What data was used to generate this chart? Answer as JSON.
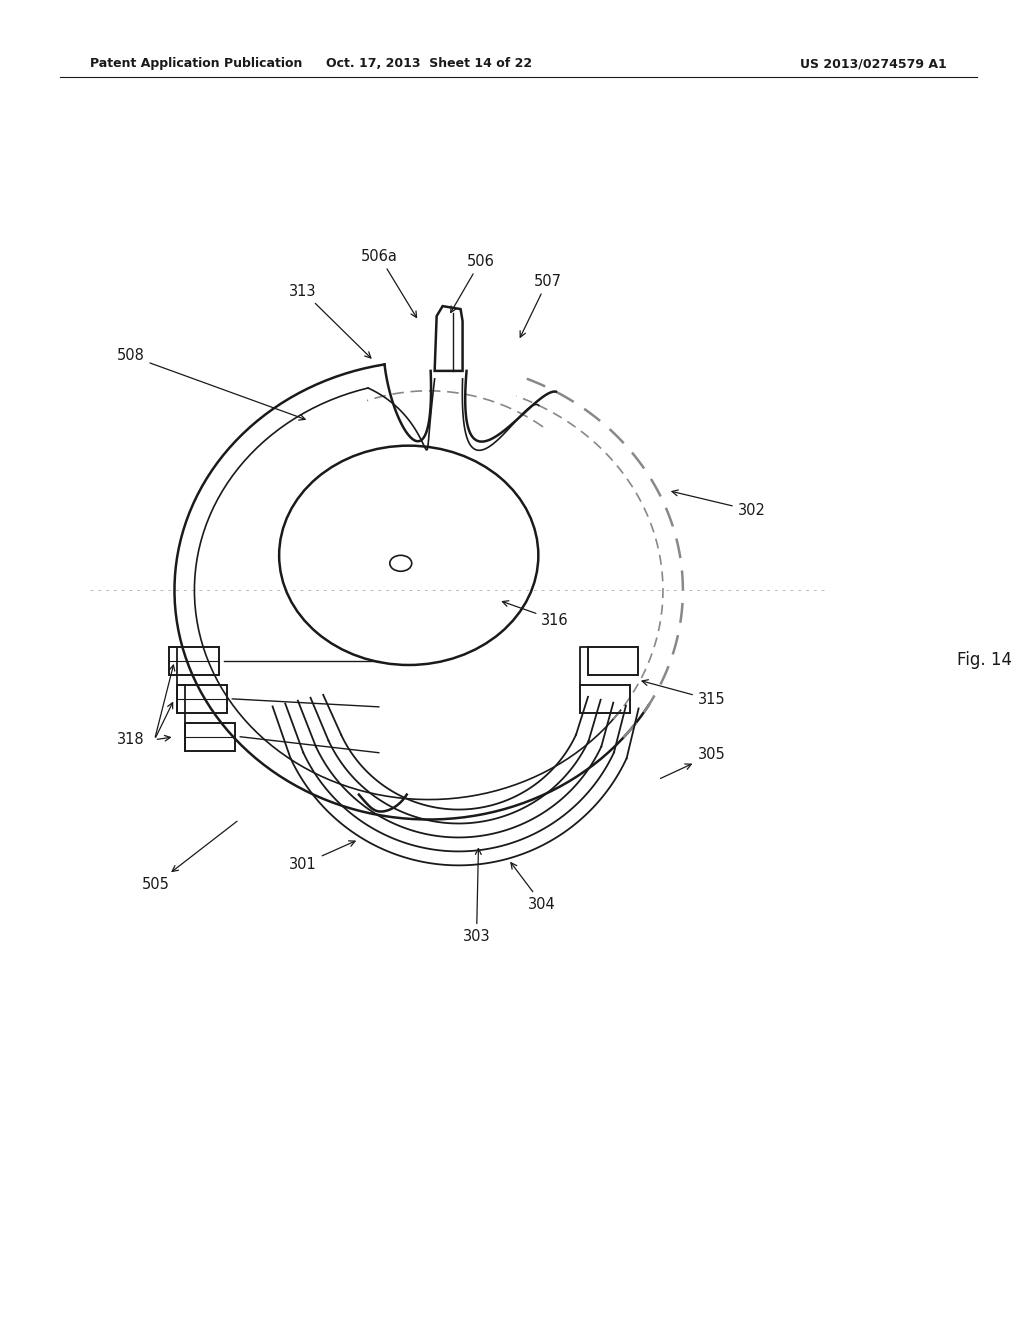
{
  "header_left": "Patent Application Publication",
  "header_center": "Oct. 17, 2013  Sheet 14 of 22",
  "header_right": "US 2013/0274579 A1",
  "fig_label": "Fig. 14",
  "bg_color": "#ffffff",
  "line_color": "#1a1a1a",
  "dashed_color": "#888888",
  "figsize": [
    10.24,
    13.2
  ],
  "dpi": 100
}
